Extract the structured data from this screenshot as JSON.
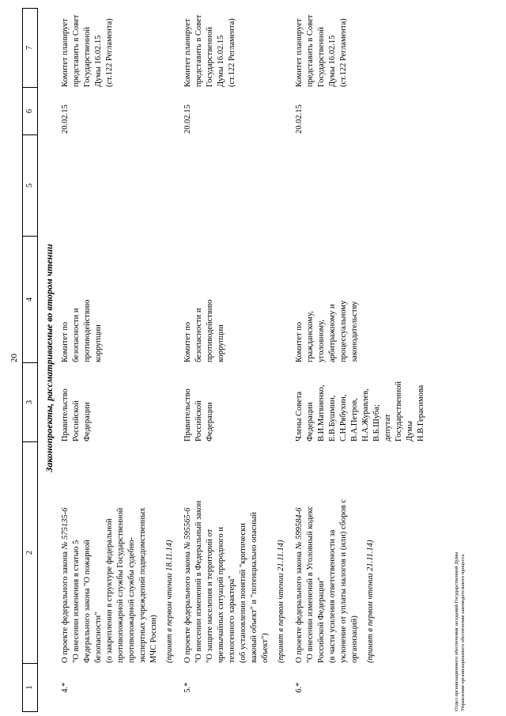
{
  "page": {
    "number": "20",
    "section_title": "Законопроекты, рассматриваемые во втором чтении",
    "footer": [
      "Отдел организационного обеспечения заседаний Государственной Думы",
      "Управления организационного обеспечения законодательного процесса"
    ]
  },
  "table": {
    "column_headers": [
      "1",
      "2",
      "3",
      "4",
      "5",
      "6",
      "7"
    ],
    "rows": [
      {
        "num": "4.*",
        "bill_intro": "О проекте федерального закона",
        "bill_no": "№ 575135-6",
        "bill_body": "\"О внесении изменения в статью 5\nФедерального закона \"О пожарной\nбезопасности\"\n(о закреплении в структуре федеральной\nпротивопожарной службы Государственной\nпротивопожарной службы судебно-\nэкспертных учреждений подведомственных\nМЧС России)",
        "adopted": "(принят в первом чтении 18.11.14)",
        "initiator": "Правительство\nРоссийской\nФедерации",
        "committee": "Комитет по\nбезопасности и\nпротиводействию\nкоррупции",
        "col5": "",
        "date": "20.02.15",
        "plan": "Комитет планирует\nпредставить в Совет\nГосударственной\nДумы 16.02.15\n(ст.122 Регламента)"
      },
      {
        "num": "5.*",
        "bill_intro": "О проекте федерального закона",
        "bill_no": "№ 595565-6",
        "bill_body": "\"О внесении изменений в Федеральный закон\n\"О защите населения и территорий от\nчрезвычайных ситуаций природного и\nтехногенного характера\"\n(об установлении понятий \"критически\nважный объект\" и \"потенциально опасный\nобъект\")",
        "adopted": "(принят в первом чтении 21.11.14)",
        "initiator": "Правительство\nРоссийской\nФедерации",
        "committee": "Комитет по\nбезопасности и\nпротиводействию\nкоррупции",
        "col5": "",
        "date": "20.02.15",
        "plan": "Комитет планирует\nпредставить в Совет\nГосударственной\nДумы 16.02.15\n(ст.122 Регламента)"
      },
      {
        "num": "6.*",
        "bill_intro": "О проекте федерального закона",
        "bill_no": "№ 599584-6",
        "bill_body": "\"О внесении изменений в Уголовный кодекс\nРоссийской Федерации\"\n(в части усиления ответственности за\nуклонение от уплаты налогов и (или) сборов с\nорганизаций)",
        "adopted": "(принят в первом чтении 21.11.14)",
        "initiator": "Члены Совета\nФедерации\nВ.И.Матвиенко,\nЕ.В.Бушмин,\nС.Н.Рябухин,\nВ.А.Петров,\nН.А.Журавлев,\nВ.Б.Шуба;\nдепутат\nГосударственной\nДумы\nН.В.Герасимова",
        "committee": "Комитет по\nгражданскому,\nуголовному,\nарбитражному и\nпроцессуальному\nзаконодательству",
        "col5": "",
        "date": "20.02.15",
        "plan": "Комитет планирует\nпредставить в Совет\nГосударственной\nДумы 16.02.15\n(ст.122 Регламента)"
      }
    ]
  }
}
